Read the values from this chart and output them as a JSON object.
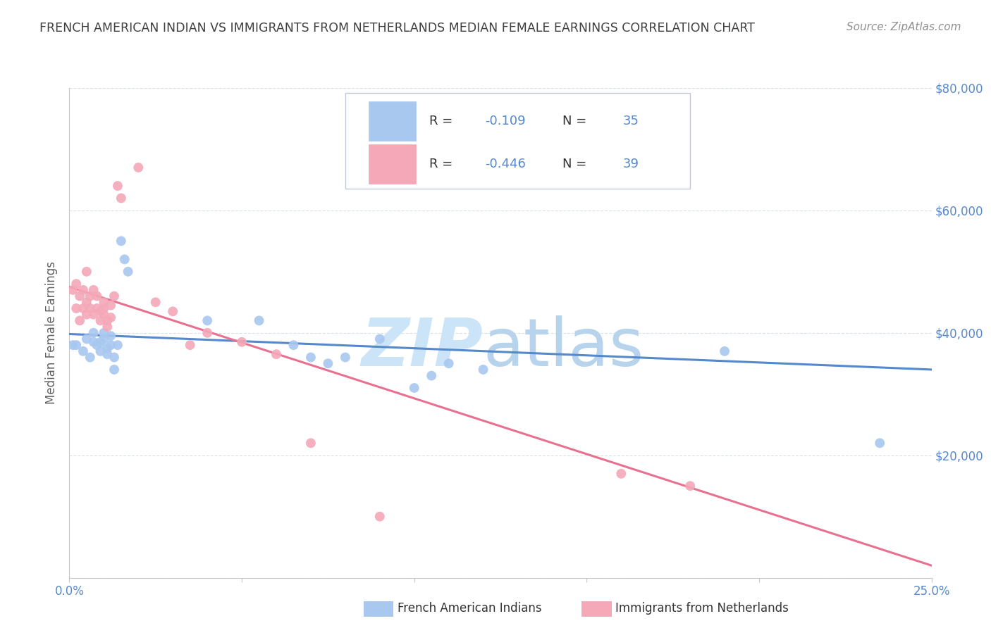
{
  "title": "FRENCH AMERICAN INDIAN VS IMMIGRANTS FROM NETHERLANDS MEDIAN FEMALE EARNINGS CORRELATION CHART",
  "source": "Source: ZipAtlas.com",
  "ylabel": "Median Female Earnings",
  "xmin": 0.0,
  "xmax": 0.25,
  "ymin": 0,
  "ymax": 80000,
  "yticks": [
    0,
    20000,
    40000,
    60000,
    80000
  ],
  "ytick_labels": [
    "",
    "$20,000",
    "$40,000",
    "$60,000",
    "$80,000"
  ],
  "xticks": [
    0.0,
    0.05,
    0.1,
    0.15,
    0.2,
    0.25
  ],
  "xtick_labels": [
    "0.0%",
    "",
    "",
    "",
    "",
    "25.0%"
  ],
  "blue_R": -0.109,
  "blue_N": 35,
  "pink_R": -0.446,
  "pink_N": 39,
  "blue_color": "#a8c8f0",
  "pink_color": "#f4a8b8",
  "blue_line_color": "#5588cc",
  "pink_line_color": "#e87090",
  "title_color": "#404040",
  "source_color": "#909090",
  "axis_label_color": "#606060",
  "tick_label_color": "#5588cc",
  "background_color": "#ffffff",
  "legend_R_color": "#000000",
  "legend_val_color": "#5588cc",
  "legend_label_color": "#404040",
  "blue_scatter_x": [
    0.001,
    0.002,
    0.004,
    0.005,
    0.006,
    0.007,
    0.007,
    0.008,
    0.009,
    0.009,
    0.01,
    0.01,
    0.011,
    0.011,
    0.012,
    0.012,
    0.013,
    0.013,
    0.014,
    0.015,
    0.016,
    0.017,
    0.04,
    0.055,
    0.065,
    0.07,
    0.075,
    0.08,
    0.09,
    0.1,
    0.105,
    0.11,
    0.12,
    0.19,
    0.235
  ],
  "blue_scatter_y": [
    38000,
    38000,
    37000,
    39000,
    36000,
    38500,
    40000,
    38000,
    37000,
    38500,
    40000,
    39000,
    37500,
    36500,
    38000,
    39500,
    34000,
    36000,
    38000,
    55000,
    52000,
    50000,
    42000,
    42000,
    38000,
    36000,
    35000,
    36000,
    39000,
    31000,
    33000,
    35000,
    34000,
    37000,
    22000
  ],
  "pink_scatter_x": [
    0.001,
    0.002,
    0.002,
    0.003,
    0.003,
    0.004,
    0.004,
    0.005,
    0.005,
    0.005,
    0.006,
    0.006,
    0.007,
    0.007,
    0.008,
    0.008,
    0.009,
    0.009,
    0.01,
    0.01,
    0.01,
    0.011,
    0.011,
    0.012,
    0.012,
    0.013,
    0.014,
    0.015,
    0.02,
    0.025,
    0.03,
    0.035,
    0.04,
    0.05,
    0.06,
    0.07,
    0.09,
    0.16,
    0.18
  ],
  "pink_scatter_y": [
    47000,
    44000,
    48000,
    42000,
    46000,
    44000,
    47000,
    43000,
    45000,
    50000,
    46000,
    44000,
    43000,
    47000,
    46000,
    44000,
    42000,
    43500,
    44000,
    43000,
    45000,
    42000,
    41000,
    42500,
    44500,
    46000,
    64000,
    62000,
    67000,
    45000,
    43500,
    38000,
    40000,
    38500,
    36500,
    22000,
    10000,
    17000,
    15000
  ],
  "blue_trend_x0": 0.0,
  "blue_trend_y0": 39800,
  "blue_trend_x1": 0.25,
  "blue_trend_y1": 34000,
  "pink_trend_x0": 0.0,
  "pink_trend_y0": 47500,
  "pink_trend_x1": 0.25,
  "pink_trend_y1": 2000
}
